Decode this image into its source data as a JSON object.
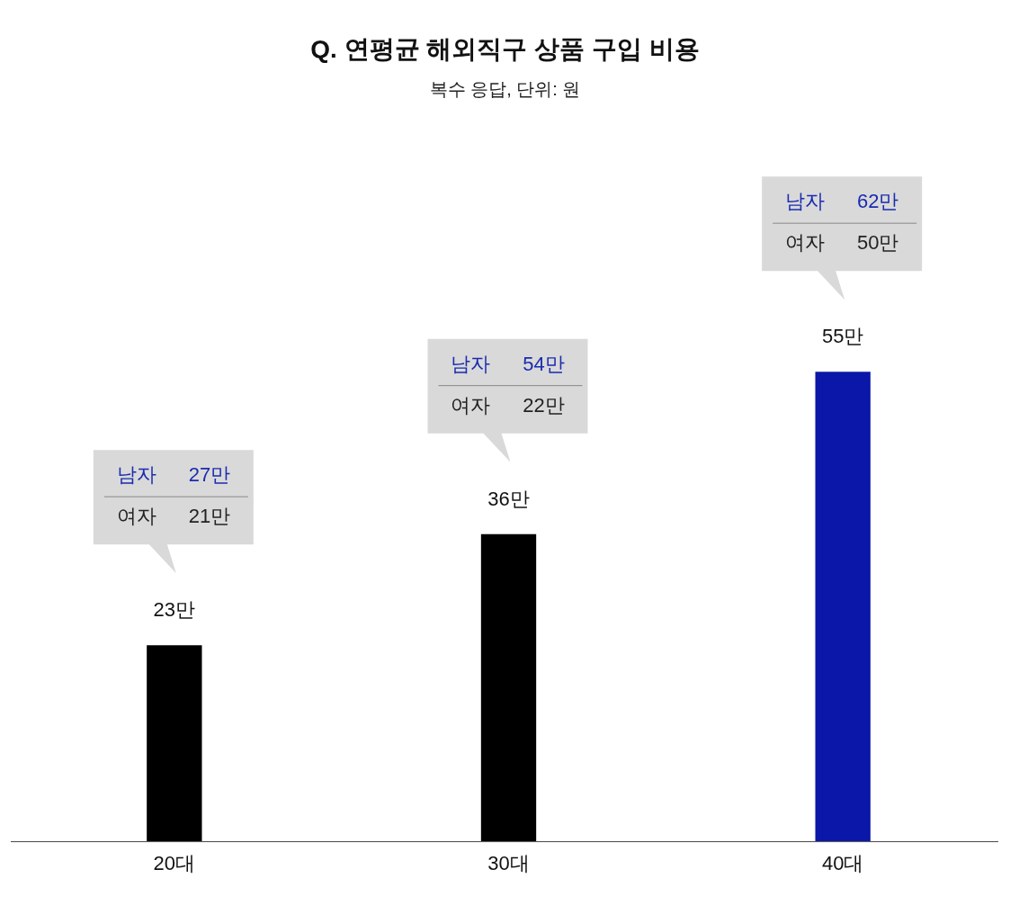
{
  "chart_data": {
    "type": "bar",
    "title": "Q. 연평균 해외직구 상품 구입 비용",
    "subtitle": "복수 응답, 단위: 원",
    "categories": [
      "20대",
      "30대",
      "40대"
    ],
    "values": [
      23,
      36,
      55
    ],
    "colors": [
      "#000000",
      "#000000",
      "#0a17a8"
    ],
    "value_labels": [
      "23만",
      "36만",
      "55만"
    ],
    "tick_labels": "x",
    "grid": false,
    "legend": false,
    "annotations": [
      "남자 27만",
      "여자 21만",
      "남자 54만",
      "여자 22만",
      "남자 62만",
      "여자 50만"
    ]
  }
}
